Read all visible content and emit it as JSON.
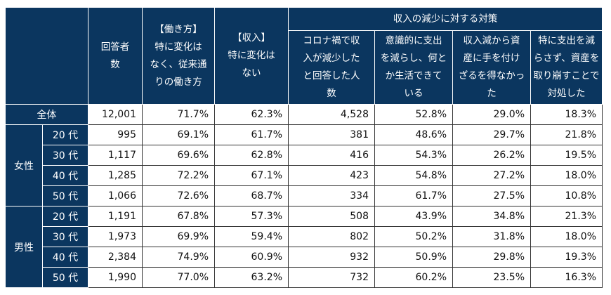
{
  "header": {
    "group": "収入の減少に対する対策",
    "columns": [
      "回答者\n数",
      "【働き方】\n特に変化は\nなく、従来通\nりの働き方",
      "【収入】\n特に変化は\nない",
      "コロナ禍で収\n入が減少した\nと回答した人\n数",
      "意識的に支出\nを減らし、何と\nか生活できて\nいる",
      "収入減から資\n産に手を付け\nざるを得なかっ\nた",
      "特に支出を減\nらさず、資産を\n取り崩すことで\n対処した"
    ]
  },
  "total": {
    "label": "全体",
    "values": [
      "12,001",
      "71.7%",
      "62.3%",
      "4,528",
      "52.8%",
      "29.0%",
      "18.3%"
    ]
  },
  "groups": [
    {
      "label": "女性",
      "rows": [
        {
          "age": "20 代",
          "values": [
            "995",
            "69.1%",
            "61.7%",
            "381",
            "48.6%",
            "29.7%",
            "21.8%"
          ]
        },
        {
          "age": "30 代",
          "values": [
            "1,117",
            "69.6%",
            "62.8%",
            "416",
            "54.3%",
            "26.2%",
            "19.5%"
          ]
        },
        {
          "age": "40 代",
          "values": [
            "1,285",
            "72.2%",
            "67.1%",
            "423",
            "54.8%",
            "27.2%",
            "18.0%"
          ]
        },
        {
          "age": "50 代",
          "values": [
            "1,066",
            "72.6%",
            "68.7%",
            "334",
            "61.7%",
            "27.5%",
            "10.8%"
          ]
        }
      ]
    },
    {
      "label": "男性",
      "rows": [
        {
          "age": "20 代",
          "values": [
            "1,191",
            "67.8%",
            "57.3%",
            "508",
            "43.9%",
            "34.8%",
            "21.3%"
          ]
        },
        {
          "age": "30 代",
          "values": [
            "1,973",
            "69.9%",
            "59.4%",
            "802",
            "50.2%",
            "31.8%",
            "18.0%"
          ]
        },
        {
          "age": "40 代",
          "values": [
            "2,384",
            "74.9%",
            "60.9%",
            "932",
            "50.9%",
            "29.8%",
            "19.3%"
          ]
        },
        {
          "age": "50 代",
          "values": [
            "1,990",
            "77.0%",
            "63.2%",
            "732",
            "60.2%",
            "23.5%",
            "16.3%"
          ]
        }
      ]
    }
  ]
}
